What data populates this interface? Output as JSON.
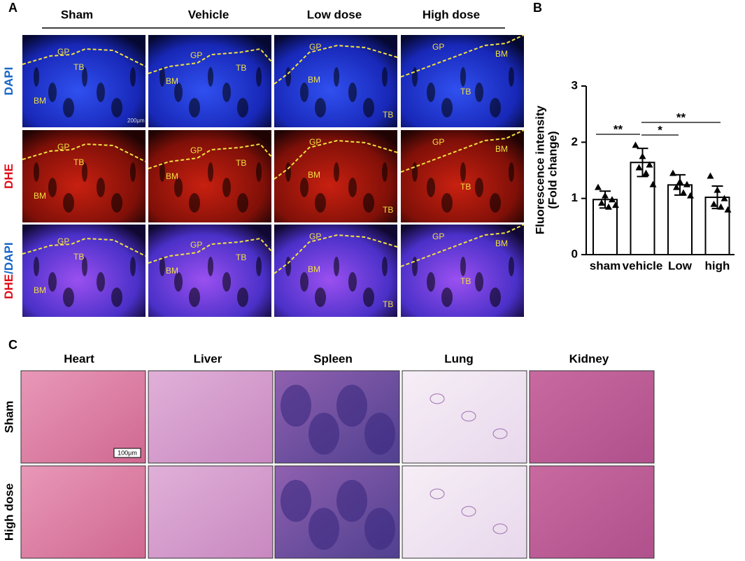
{
  "panel_a": {
    "label": "A",
    "columns": [
      "Sham",
      "Vehicle",
      "Low dose",
      "High dose"
    ],
    "scale_bar": "200μm",
    "rows": [
      {
        "label": [
          "DAPI"
        ],
        "cells": [
          [
            "GP",
            "TB",
            "BM"
          ],
          [
            "GP",
            "TB",
            "BM"
          ],
          [
            "GP",
            "BM",
            "TB"
          ],
          [
            "GP",
            "BM",
            "TB"
          ]
        ]
      },
      {
        "label": [
          "DHE"
        ],
        "cells": [
          [
            "GP",
            "TB",
            "BM"
          ],
          [
            "GP",
            "TB",
            "BM"
          ],
          [
            "GP",
            "BM",
            "TB"
          ],
          [
            "GP",
            "BM",
            "TB"
          ]
        ]
      },
      {
        "label": [
          "DHE",
          "/DAPI"
        ],
        "cells": [
          [
            "GP",
            "TB",
            "BM"
          ],
          [
            "GP",
            "TB",
            "BM"
          ],
          [
            "GP",
            "BM",
            "TB"
          ],
          [
            "GP",
            "BM",
            "TB"
          ]
        ]
      }
    ]
  },
  "chart_data": {
    "type": "bar",
    "label": "B",
    "ylabel": [
      "Fluorescence intensity",
      "(Fold change)"
    ],
    "categories": [
      "sham",
      "vehicle",
      "Low",
      "high"
    ],
    "values": [
      0.98,
      1.64,
      1.24,
      1.02
    ],
    "errors": [
      0.15,
      0.25,
      0.18,
      0.2
    ],
    "points": [
      [
        1.2,
        1.05,
        0.98,
        0.92,
        0.85,
        0.88
      ],
      [
        1.95,
        1.75,
        1.6,
        1.55,
        1.45,
        1.25
      ],
      [
        1.45,
        1.3,
        1.25,
        1.2,
        1.1,
        1.05
      ],
      [
        1.4,
        1.15,
        1.0,
        0.9,
        0.85,
        0.8
      ]
    ],
    "color": "#ffffff",
    "ylim": [
      0,
      3
    ],
    "yticks": [
      0,
      1,
      2,
      3
    ],
    "significance": [
      "**",
      "*",
      "**"
    ]
  },
  "panel_c": {
    "label": "C",
    "columns": [
      "Heart",
      "Liver",
      "Spleen",
      "Lung",
      "Kidney"
    ],
    "rows": [
      "Sham",
      "High dose"
    ],
    "scale_bar": "100μm"
  }
}
